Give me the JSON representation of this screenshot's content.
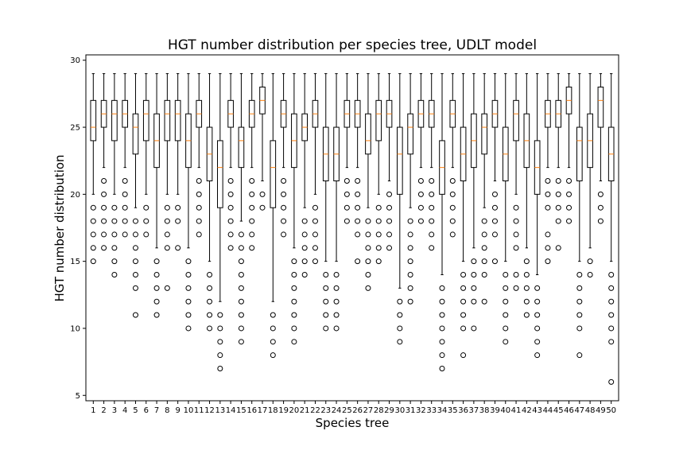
{
  "chart_data": {
    "type": "box",
    "title": "HGT number distribution per species tree, UDLT model",
    "xlabel": "Species tree",
    "ylabel": "HGT number distribution",
    "ylim": [
      4.6,
      30.4
    ],
    "yticks": [
      5,
      10,
      15,
      20,
      25,
      30
    ],
    "categories": [
      "1",
      "2",
      "3",
      "4",
      "5",
      "6",
      "7",
      "8",
      "9",
      "10",
      "11",
      "12",
      "13",
      "14",
      "15",
      "16",
      "17",
      "18",
      "19",
      "20",
      "21",
      "22",
      "23",
      "24",
      "25",
      "26",
      "27",
      "28",
      "29",
      "30",
      "31",
      "32",
      "33",
      "34",
      "35",
      "36",
      "37",
      "38",
      "39",
      "40",
      "41",
      "42",
      "43",
      "44",
      "45",
      "46",
      "47",
      "48",
      "49",
      "50"
    ],
    "grid": false,
    "colors": {
      "box": "#000000",
      "median": "#ff7f0e",
      "outlier": "#000000"
    },
    "boxes": [
      {
        "q1": 24,
        "median": 25,
        "q3": 27,
        "whislo": 20,
        "whishi": 29,
        "outliers": [
          19,
          18,
          17,
          16,
          15
        ]
      },
      {
        "q1": 25,
        "median": 26,
        "q3": 27,
        "whislo": 22,
        "whishi": 29,
        "outliers": [
          21,
          20,
          19,
          18,
          17,
          16
        ]
      },
      {
        "q1": 24,
        "median": 26,
        "q3": 27,
        "whislo": 20,
        "whishi": 29,
        "outliers": [
          19,
          18,
          17,
          16,
          15,
          14
        ]
      },
      {
        "q1": 25,
        "median": 26,
        "q3": 27,
        "whislo": 22,
        "whishi": 29,
        "outliers": [
          21,
          20,
          19,
          18,
          17
        ]
      },
      {
        "q1": 23,
        "median": 25,
        "q3": 26,
        "whislo": 19,
        "whishi": 29,
        "outliers": [
          18,
          17,
          16,
          15,
          14,
          13,
          11
        ]
      },
      {
        "q1": 24,
        "median": 26,
        "q3": 27,
        "whislo": 20,
        "whishi": 29,
        "outliers": [
          19,
          18,
          17
        ]
      },
      {
        "q1": 22,
        "median": 24,
        "q3": 26,
        "whislo": 16,
        "whishi": 29,
        "outliers": [
          15,
          14,
          13,
          12,
          11
        ]
      },
      {
        "q1": 24,
        "median": 26,
        "q3": 27,
        "whislo": 20,
        "whishi": 29,
        "outliers": [
          19,
          18,
          17,
          16,
          13
        ]
      },
      {
        "q1": 24,
        "median": 26,
        "q3": 27,
        "whislo": 20,
        "whishi": 29,
        "outliers": [
          19,
          18,
          16
        ]
      },
      {
        "q1": 22,
        "median": 24,
        "q3": 26,
        "whislo": 16,
        "whishi": 29,
        "outliers": [
          15,
          14,
          13,
          12,
          11,
          10
        ]
      },
      {
        "q1": 25,
        "median": 26,
        "q3": 27,
        "whislo": 22,
        "whishi": 29,
        "outliers": [
          21,
          20,
          19,
          18,
          17
        ]
      },
      {
        "q1": 21,
        "median": 23,
        "q3": 25,
        "whislo": 15,
        "whishi": 29,
        "outliers": [
          14,
          13,
          12,
          11,
          10
        ]
      },
      {
        "q1": 19,
        "median": 22,
        "q3": 24,
        "whislo": 12,
        "whishi": 29,
        "outliers": [
          11,
          10,
          9,
          8,
          7
        ]
      },
      {
        "q1": 25,
        "median": 26,
        "q3": 27,
        "whislo": 22,
        "whishi": 29,
        "outliers": [
          21,
          20,
          19,
          18,
          17,
          16
        ]
      },
      {
        "q1": 22,
        "median": 24,
        "q3": 25,
        "whislo": 18,
        "whishi": 29,
        "outliers": [
          17,
          16,
          15,
          14,
          13,
          12,
          11,
          10,
          9
        ]
      },
      {
        "q1": 25,
        "median": 26,
        "q3": 27,
        "whislo": 22,
        "whishi": 29,
        "outliers": [
          21,
          20,
          19,
          18,
          17,
          16
        ]
      },
      {
        "q1": 26,
        "median": 27,
        "q3": 28,
        "whislo": 21,
        "whishi": 29,
        "outliers": [
          20,
          19
        ]
      },
      {
        "q1": 19,
        "median": 22,
        "q3": 24,
        "whislo": 12,
        "whishi": 29,
        "outliers": [
          11,
          10,
          9,
          8
        ]
      },
      {
        "q1": 25,
        "median": 26,
        "q3": 27,
        "whislo": 22,
        "whishi": 29,
        "outliers": [
          21,
          20,
          19,
          18,
          17
        ]
      },
      {
        "q1": 22,
        "median": 24,
        "q3": 26,
        "whislo": 16,
        "whishi": 29,
        "outliers": [
          15,
          14,
          13,
          12,
          11,
          10,
          9
        ]
      },
      {
        "q1": 24,
        "median": 25,
        "q3": 26,
        "whislo": 19,
        "whishi": 29,
        "outliers": [
          18,
          17,
          16,
          15,
          14
        ]
      },
      {
        "q1": 25,
        "median": 26,
        "q3": 27,
        "whislo": 20,
        "whishi": 29,
        "outliers": [
          19,
          18,
          17,
          16,
          15
        ]
      },
      {
        "q1": 21,
        "median": 23,
        "q3": 25,
        "whislo": 15,
        "whishi": 29,
        "outliers": [
          14,
          13,
          12,
          11,
          10
        ]
      },
      {
        "q1": 21,
        "median": 23,
        "q3": 25,
        "whislo": 15,
        "whishi": 29,
        "outliers": [
          14,
          13,
          12,
          11,
          10
        ]
      },
      {
        "q1": 25,
        "median": 26,
        "q3": 27,
        "whislo": 22,
        "whishi": 29,
        "outliers": [
          21,
          20,
          19,
          18
        ]
      },
      {
        "q1": 25,
        "median": 26,
        "q3": 27,
        "whislo": 22,
        "whishi": 29,
        "outliers": [
          21,
          20,
          19,
          18,
          17,
          15
        ]
      },
      {
        "q1": 23,
        "median": 24,
        "q3": 26,
        "whislo": 19,
        "whishi": 29,
        "outliers": [
          18,
          17,
          16,
          15,
          14,
          13
        ]
      },
      {
        "q1": 24,
        "median": 26,
        "q3": 27,
        "whislo": 20,
        "whishi": 29,
        "outliers": [
          19,
          18,
          17,
          16,
          15
        ]
      },
      {
        "q1": 25,
        "median": 26,
        "q3": 27,
        "whislo": 21,
        "whishi": 29,
        "outliers": [
          20,
          19,
          18,
          17,
          16
        ]
      },
      {
        "q1": 20,
        "median": 23,
        "q3": 25,
        "whislo": 13,
        "whishi": 29,
        "outliers": [
          12,
          11,
          10,
          9
        ]
      },
      {
        "q1": 23,
        "median": 25,
        "q3": 26,
        "whislo": 19,
        "whishi": 29,
        "outliers": [
          18,
          17,
          16,
          15,
          14,
          13,
          12
        ]
      },
      {
        "q1": 25,
        "median": 26,
        "q3": 27,
        "whislo": 22,
        "whishi": 29,
        "outliers": [
          21,
          20,
          19,
          18
        ]
      },
      {
        "q1": 25,
        "median": 26,
        "q3": 27,
        "whislo": 22,
        "whishi": 29,
        "outliers": [
          21,
          20,
          19,
          18,
          17,
          16
        ]
      },
      {
        "q1": 20,
        "median": 22,
        "q3": 24,
        "whislo": 14,
        "whishi": 29,
        "outliers": [
          13,
          12,
          11,
          10,
          9,
          8,
          7
        ]
      },
      {
        "q1": 25,
        "median": 26,
        "q3": 27,
        "whislo": 22,
        "whishi": 29,
        "outliers": [
          21,
          20,
          19,
          18,
          17
        ]
      },
      {
        "q1": 21,
        "median": 23,
        "q3": 25,
        "whislo": 15,
        "whishi": 29,
        "outliers": [
          14,
          13,
          12,
          11,
          10,
          8
        ]
      },
      {
        "q1": 22,
        "median": 24,
        "q3": 26,
        "whislo": 16,
        "whishi": 29,
        "outliers": [
          15,
          14,
          13,
          12,
          10
        ]
      },
      {
        "q1": 23,
        "median": 25,
        "q3": 26,
        "whislo": 19,
        "whishi": 29,
        "outliers": [
          18,
          17,
          16,
          15,
          14,
          12
        ]
      },
      {
        "q1": 25,
        "median": 26,
        "q3": 27,
        "whislo": 21,
        "whishi": 29,
        "outliers": [
          20,
          19,
          18,
          17,
          15
        ]
      },
      {
        "q1": 21,
        "median": 23,
        "q3": 25,
        "whislo": 15,
        "whishi": 29,
        "outliers": [
          14,
          13,
          12,
          11,
          10,
          9
        ]
      },
      {
        "q1": 24,
        "median": 26,
        "q3": 27,
        "whislo": 20,
        "whishi": 29,
        "outliers": [
          19,
          18,
          17,
          16,
          14,
          13
        ]
      },
      {
        "q1": 22,
        "median": 24,
        "q3": 26,
        "whislo": 16,
        "whishi": 29,
        "outliers": [
          15,
          14,
          13,
          12,
          11
        ]
      },
      {
        "q1": 20,
        "median": 22,
        "q3": 24,
        "whislo": 14,
        "whishi": 29,
        "outliers": [
          13,
          12,
          11,
          10,
          9,
          8
        ]
      },
      {
        "q1": 25,
        "median": 26,
        "q3": 27,
        "whislo": 22,
        "whishi": 29,
        "outliers": [
          21,
          20,
          19,
          17,
          16,
          15
        ]
      },
      {
        "q1": 25,
        "median": 26,
        "q3": 27,
        "whislo": 22,
        "whishi": 29,
        "outliers": [
          21,
          20,
          19,
          18,
          16
        ]
      },
      {
        "q1": 26,
        "median": 27,
        "q3": 28,
        "whislo": 22,
        "whishi": 29,
        "outliers": [
          21,
          20,
          19,
          18
        ]
      },
      {
        "q1": 21,
        "median": 24,
        "q3": 25,
        "whislo": 15,
        "whishi": 29,
        "outliers": [
          14,
          13,
          12,
          11,
          10,
          8
        ]
      },
      {
        "q1": 22,
        "median": 24,
        "q3": 26,
        "whislo": 16,
        "whishi": 29,
        "outliers": [
          15,
          14
        ]
      },
      {
        "q1": 25,
        "median": 27,
        "q3": 28,
        "whislo": 21,
        "whishi": 29,
        "outliers": [
          20,
          19,
          18
        ]
      },
      {
        "q1": 21,
        "median": 23,
        "q3": 25,
        "whislo": 15,
        "whishi": 29,
        "outliers": [
          14,
          13,
          12,
          11,
          10,
          9,
          6
        ]
      }
    ]
  }
}
